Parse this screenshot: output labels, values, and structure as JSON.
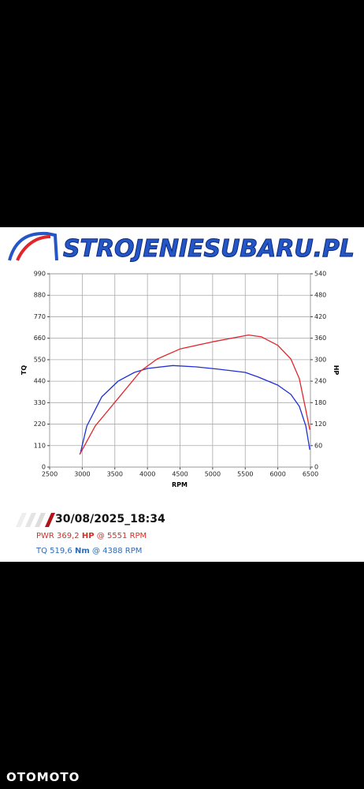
{
  "logo": "STROJENIESUBARU.PL",
  "report": {
    "date": "30/08/2025_18:34",
    "power_line": [
      "PWR 369,2",
      "HP",
      "@ 5551 RPM"
    ],
    "torque_line": [
      "TQ 519,6",
      "Nm",
      "@ 4388 RPM"
    ]
  },
  "watermark": "OTOMOTO",
  "chart_data": {
    "type": "line",
    "x_label": "RPM",
    "xlim": [
      2500,
      6500
    ],
    "xticks": [
      2500,
      3000,
      3500,
      4000,
      4500,
      5000,
      5500,
      6000,
      6500
    ],
    "ylim": [
      0,
      990
    ],
    "yticks": [
      0,
      110,
      220,
      330,
      440,
      550,
      660,
      770,
      880,
      990
    ],
    "y2lim": [
      0,
      540
    ],
    "y2ticks": [
      0,
      60,
      120,
      180,
      240,
      300,
      360,
      420,
      480,
      540
    ],
    "grid": true,
    "series": [
      {
        "name": "TQ",
        "color": "#1f2fd6",
        "axis": "y",
        "x": [
          2970,
          3070,
          3300,
          3550,
          3800,
          4000,
          4390,
          4750,
          5100,
          5500,
          5700,
          6000,
          6200,
          6330,
          6430,
          6490
        ],
        "values": [
          69,
          210,
          360,
          440,
          485,
          505,
          520,
          513,
          501,
          485,
          461,
          420,
          372,
          311,
          210,
          89
        ]
      },
      {
        "name": "HP",
        "color": "#e0262b",
        "axis": "y2",
        "x": [
          2960,
          3200,
          3550,
          3900,
          4150,
          4500,
          5000,
          5550,
          5750,
          6000,
          6200,
          6330,
          6430,
          6490
        ],
        "values": [
          35,
          115,
          192,
          269,
          302,
          330,
          350,
          369,
          364,
          340,
          302,
          247,
          159,
          104
        ]
      }
    ]
  }
}
